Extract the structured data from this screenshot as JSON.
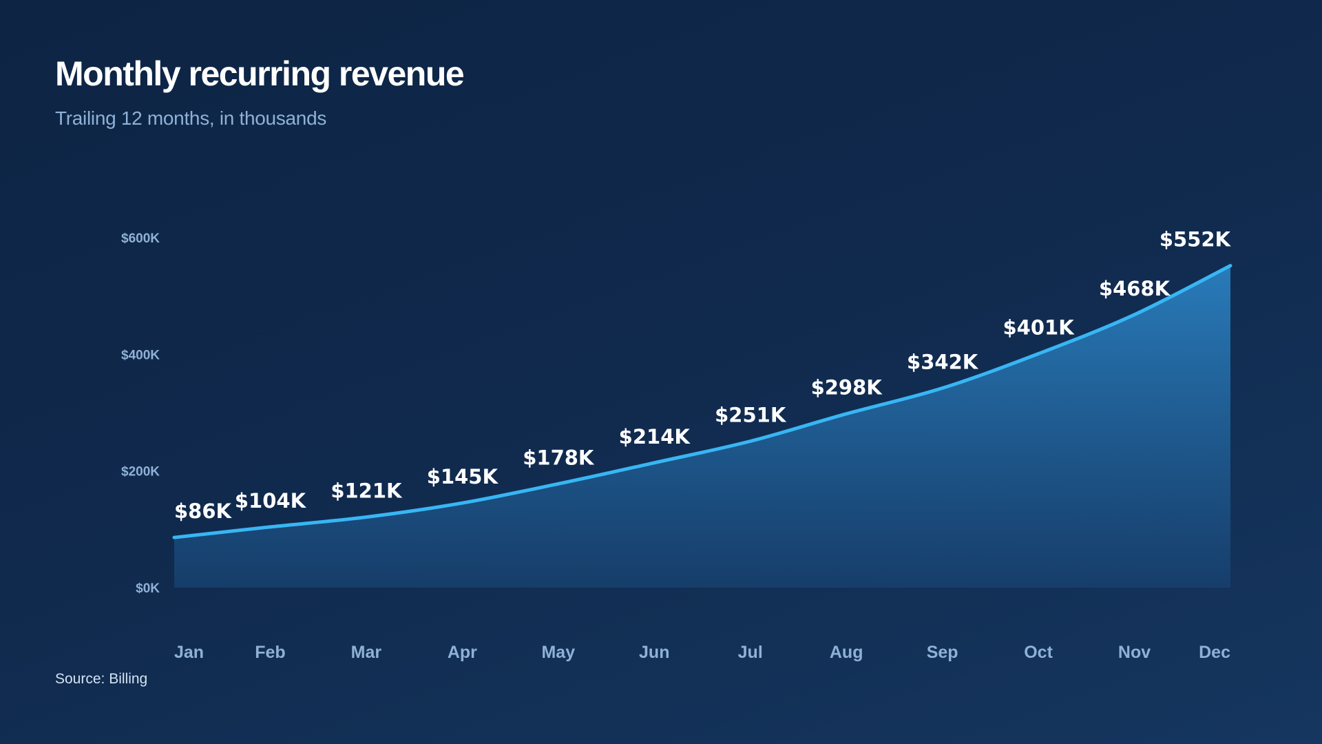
{
  "header": {
    "title": "Monthly recurring revenue",
    "subtitle": "Trailing 12 months, in thousands"
  },
  "footer": {
    "source": "Source: Billing"
  },
  "colors": {
    "line": "#38b6f4",
    "area_top": "#2a7fbf",
    "area_bottom": "#17406e",
    "background": "#0f2748"
  },
  "chart_data": {
    "type": "area",
    "categories": [
      "Jan",
      "Feb",
      "Mar",
      "Apr",
      "May",
      "Jun",
      "Jul",
      "Aug",
      "Sep",
      "Oct",
      "Nov",
      "Dec"
    ],
    "values": [
      86,
      104,
      121,
      145,
      178,
      214,
      251,
      298,
      342,
      401,
      468,
      552
    ],
    "data_labels": [
      "$86K",
      "$104K",
      "$121K",
      "$145K",
      "$178K",
      "$214K",
      "$251K",
      "$298K",
      "$342K",
      "$401K",
      "$468K",
      "$552K"
    ],
    "yticks": [
      {
        "value": 0,
        "label": "$0K"
      },
      {
        "value": 200,
        "label": "$200K"
      },
      {
        "value": 400,
        "label": "$400K"
      },
      {
        "value": 600,
        "label": "$600K"
      }
    ],
    "ylim": [
      0,
      600
    ],
    "grid": false,
    "legend": "none"
  }
}
